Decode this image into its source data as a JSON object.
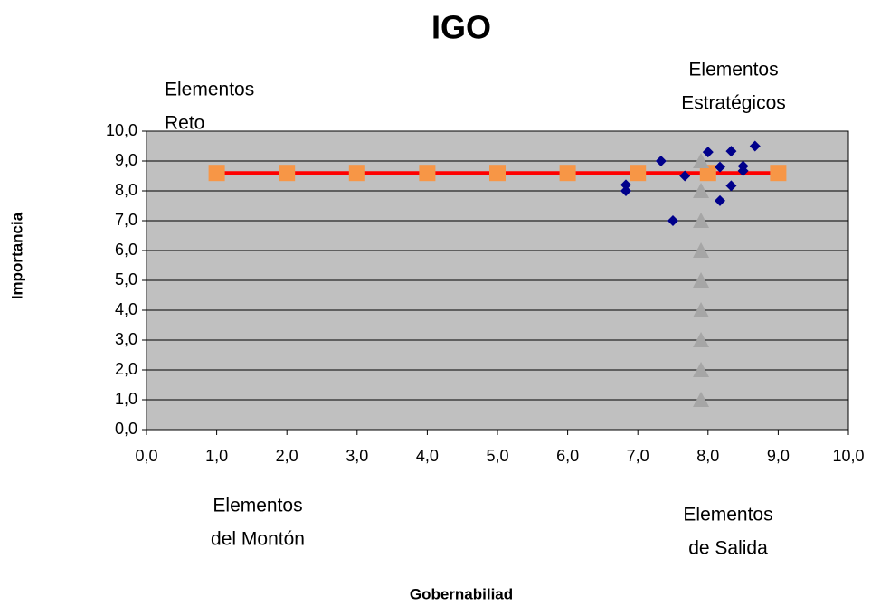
{
  "chart_data": {
    "type": "scatter",
    "title": "IGO",
    "xlabel": "Gobernabiliad",
    "ylabel": "Importancia",
    "xlim": [
      0,
      10
    ],
    "ylim": [
      0,
      10
    ],
    "xticks": [
      {
        "value": 0,
        "label": "0,0"
      },
      {
        "value": 1,
        "label": "1,0"
      },
      {
        "value": 2,
        "label": "2,0"
      },
      {
        "value": 3,
        "label": "3,0"
      },
      {
        "value": 4,
        "label": "4,0"
      },
      {
        "value": 5,
        "label": "5,0"
      },
      {
        "value": 6,
        "label": "6,0"
      },
      {
        "value": 7,
        "label": "7,0"
      },
      {
        "value": 8,
        "label": "8,0"
      },
      {
        "value": 9,
        "label": "9,0"
      },
      {
        "value": 10,
        "label": "10,0"
      }
    ],
    "yticks": [
      {
        "value": 0,
        "label": "0,0"
      },
      {
        "value": 1,
        "label": "1,0"
      },
      {
        "value": 2,
        "label": "2,0"
      },
      {
        "value": 3,
        "label": "3,0"
      },
      {
        "value": 4,
        "label": "4,0"
      },
      {
        "value": 5,
        "label": "5,0"
      },
      {
        "value": 6,
        "label": "6,0"
      },
      {
        "value": 7,
        "label": "7,0"
      },
      {
        "value": 8,
        "label": "8,0"
      },
      {
        "value": 9,
        "label": "9,0"
      },
      {
        "value": 10,
        "label": "10,0"
      }
    ],
    "ygrid": true,
    "plot_background": "#c0c0c0",
    "series": [
      {
        "marker": "square",
        "color": "#f79646",
        "line_color": "#ff0000",
        "x": [
          1,
          2,
          3,
          4,
          5,
          6,
          7,
          8,
          9
        ],
        "values": [
          8.6,
          8.6,
          8.6,
          8.6,
          8.6,
          8.6,
          8.6,
          8.6,
          8.6
        ]
      },
      {
        "marker": "triangle",
        "color": "#a6a6a6",
        "x": [
          7.9,
          7.9,
          7.9,
          7.9,
          7.9,
          7.9,
          7.9,
          7.9,
          7.9
        ],
        "values": [
          1,
          2,
          3,
          4,
          5,
          6,
          7,
          8,
          9
        ]
      },
      {
        "marker": "diamond",
        "color": "#00008b",
        "x": [
          6.83,
          6.83,
          7.33,
          7.5,
          7.67,
          8.0,
          8.17,
          8.17,
          8.33,
          8.33,
          8.5,
          8.5,
          8.67
        ],
        "values": [
          8.2,
          8.0,
          9.0,
          7.0,
          8.5,
          9.3,
          8.8,
          7.67,
          9.33,
          8.17,
          8.83,
          8.67,
          9.5
        ]
      }
    ],
    "annotations": [
      {
        "lines": [
          "Elementos",
          "Reto"
        ]
      },
      {
        "lines": [
          "Elementos",
          "Estratégicos"
        ]
      },
      {
        "lines": [
          "Elementos",
          "del Montón"
        ]
      },
      {
        "lines": [
          "Elementos",
          "de Salida"
        ]
      }
    ]
  }
}
